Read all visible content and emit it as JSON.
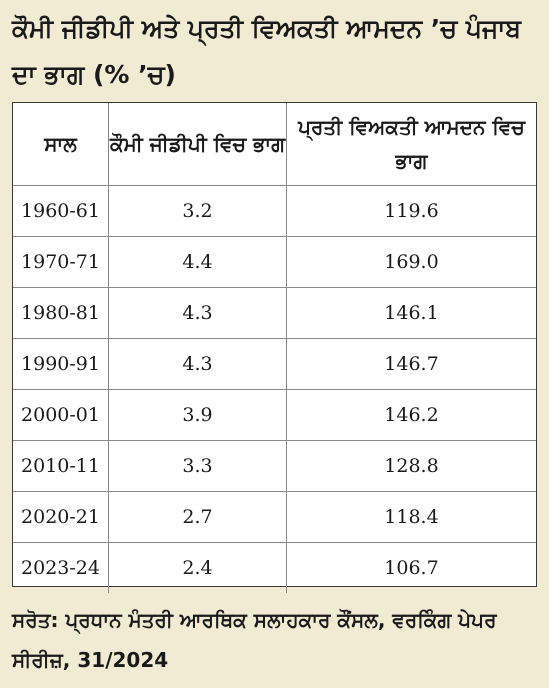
{
  "chart_data": {
    "type": "table",
    "title": "ਕੌਮੀ ਜੀਡੀਪੀ ਅਤੇ ਪ੍ਰਤੀ ਵਿਅਕਤੀ ਆਮਦਨ ’ਚ ਪੰਜਾਬ ਦਾ ਭਾਗ (% ’ਚ)",
    "columns": [
      "ਸਾਲ",
      "ਕੌਮੀ ਜੀਡੀਪੀ ਵਿਚ ਭਾਗ",
      "ਪ੍ਰਤੀ ਵਿਅਕਤੀ ਆਮਦਨ ਵਿਚ ਭਾਗ"
    ],
    "categories": [
      "1960-61",
      "1970-71",
      "1980-81",
      "1990-91",
      "2000-01",
      "2010-11",
      "2020-21",
      "2023-24"
    ],
    "series": [
      {
        "values": [
          3.2,
          4.4,
          4.3,
          4.3,
          3.9,
          3.3,
          2.7,
          2.4
        ]
      },
      {
        "values": [
          119.6,
          169.0,
          146.1,
          146.7,
          146.2,
          128.8,
          118.4,
          106.7
        ]
      }
    ],
    "display": {
      "gdp": [
        "3.2",
        "4.4",
        "4.3",
        "4.3",
        "3.9",
        "3.3",
        "2.7",
        "2.4"
      ],
      "pci": [
        "119.6",
        "169.0",
        "146.1",
        "146.7",
        "146.2",
        "128.8",
        "118.4",
        "106.7"
      ]
    },
    "source": "ਸਰੋਤ: ਪ੍ਰਧਾਨ ਮੰਤਰੀ ਆਰਥਿਕ ਸਲਾਹਕਾਰ ਕੌਂਸਲ, ਵਰਕਿੰਗ ਪੇਪਰ ਸੀਰੀਜ਼, 31/2024"
  },
  "colors": {
    "background": "#f1ebd4",
    "table_background": "#ffffff",
    "border": "#3a3a3a",
    "text": "#1a1a1a"
  }
}
